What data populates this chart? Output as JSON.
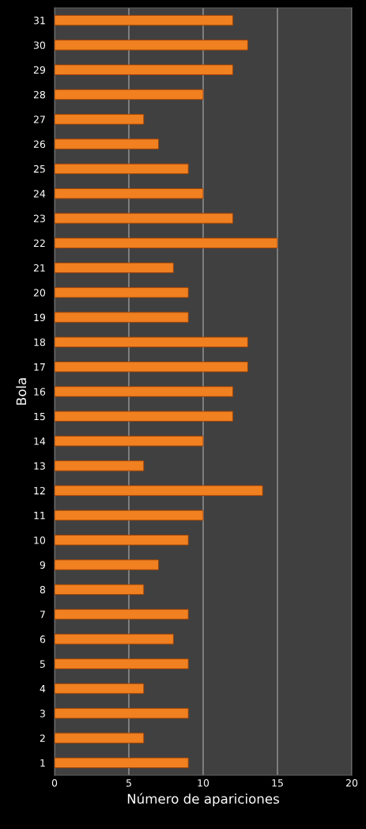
{
  "chart_data": {
    "type": "bar",
    "orientation": "horizontal",
    "xlabel": "Número de apariciones",
    "ylabel": "Bola",
    "categories": [
      "31",
      "30",
      "29",
      "28",
      "27",
      "26",
      "25",
      "24",
      "23",
      "22",
      "21",
      "20",
      "19",
      "18",
      "17",
      "16",
      "15",
      "14",
      "13",
      "12",
      "11",
      "10",
      "9",
      "8",
      "7",
      "6",
      "5",
      "4",
      "3",
      "2",
      "1"
    ],
    "values": [
      12,
      13,
      12,
      10,
      6,
      7,
      9,
      10,
      12,
      15,
      8,
      9,
      9,
      13,
      13,
      12,
      12,
      10,
      6,
      14,
      10,
      9,
      7,
      6,
      9,
      8,
      9,
      6,
      9,
      6,
      9
    ],
    "color": "#f08020",
    "xlim": [
      0,
      20
    ],
    "xticks": [
      0,
      5,
      10,
      15,
      20
    ],
    "grid": "x"
  }
}
